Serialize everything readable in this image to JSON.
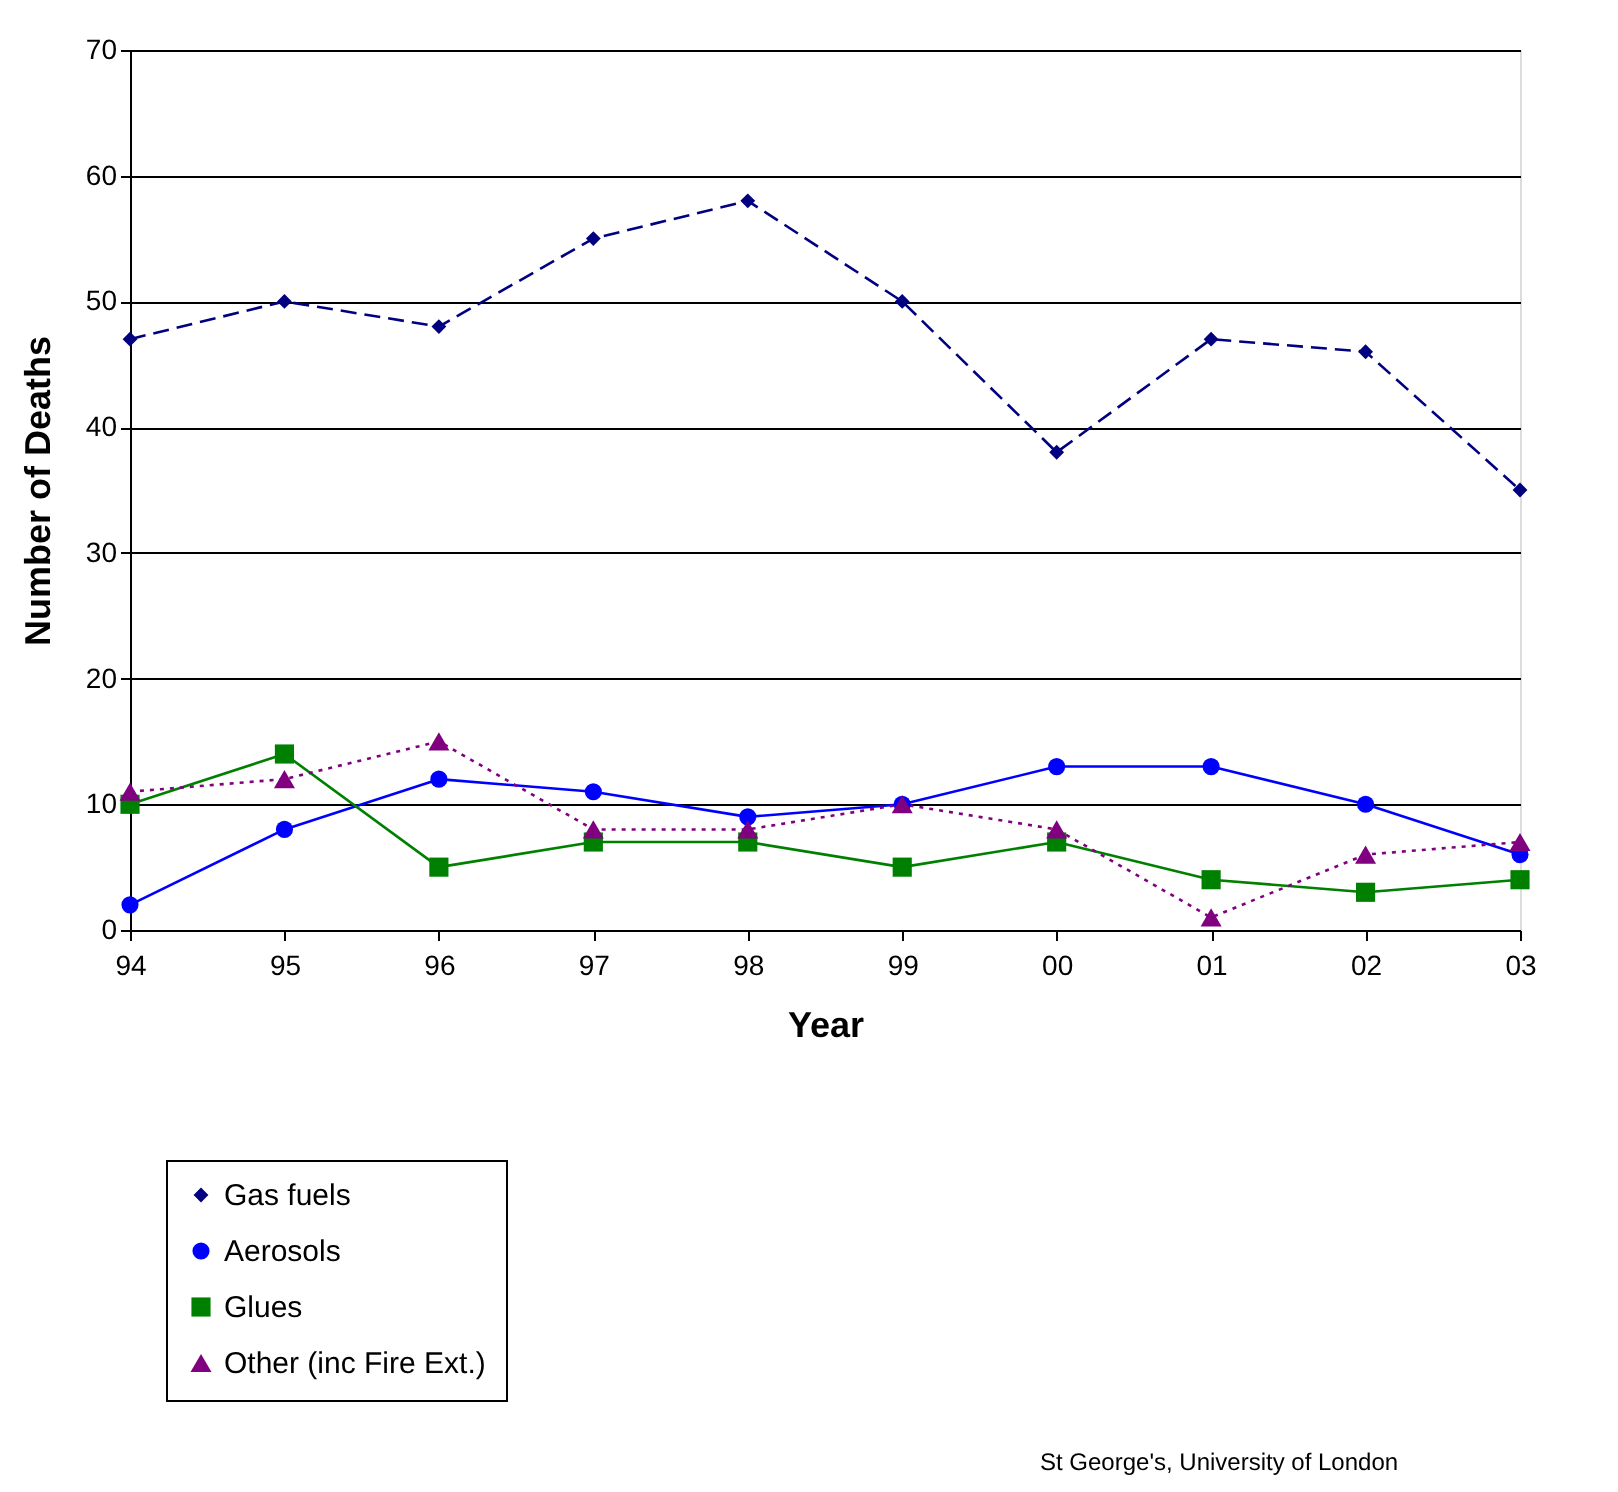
{
  "chart_data": {
    "type": "line",
    "xlabel": "Year",
    "ylabel": "Number of Deaths",
    "categories": [
      "94",
      "95",
      "96",
      "97",
      "98",
      "99",
      "00",
      "01",
      "02",
      "03"
    ],
    "series": [
      {
        "name": "Gas fuels",
        "color": "#000080",
        "marker": "diamond",
        "line_style": "dashed",
        "values": [
          47,
          50,
          48,
          55,
          58,
          50,
          38,
          47,
          46,
          35
        ]
      },
      {
        "name": "Aerosols",
        "color": "#0000ff",
        "marker": "circle",
        "line_style": "solid",
        "values": [
          2,
          8,
          12,
          11,
          9,
          10,
          13,
          13,
          10,
          6
        ]
      },
      {
        "name": "Glues",
        "color": "#008000",
        "marker": "square",
        "line_style": "solid",
        "values": [
          10,
          14,
          5,
          7,
          7,
          5,
          7,
          4,
          3,
          4
        ]
      },
      {
        "name": "Other (inc Fire Ext.)",
        "color": "#800080",
        "marker": "triangle",
        "line_style": "dotted",
        "values": [
          11,
          12,
          15,
          8,
          8,
          10,
          8,
          1,
          6,
          7
        ]
      }
    ],
    "ylim": [
      0,
      70
    ],
    "yticks": [
      0,
      10,
      20,
      30,
      40,
      50,
      60,
      70
    ],
    "grid": "y",
    "legend": "bottom left",
    "annotations": [
      "St George's, University of London"
    ]
  }
}
